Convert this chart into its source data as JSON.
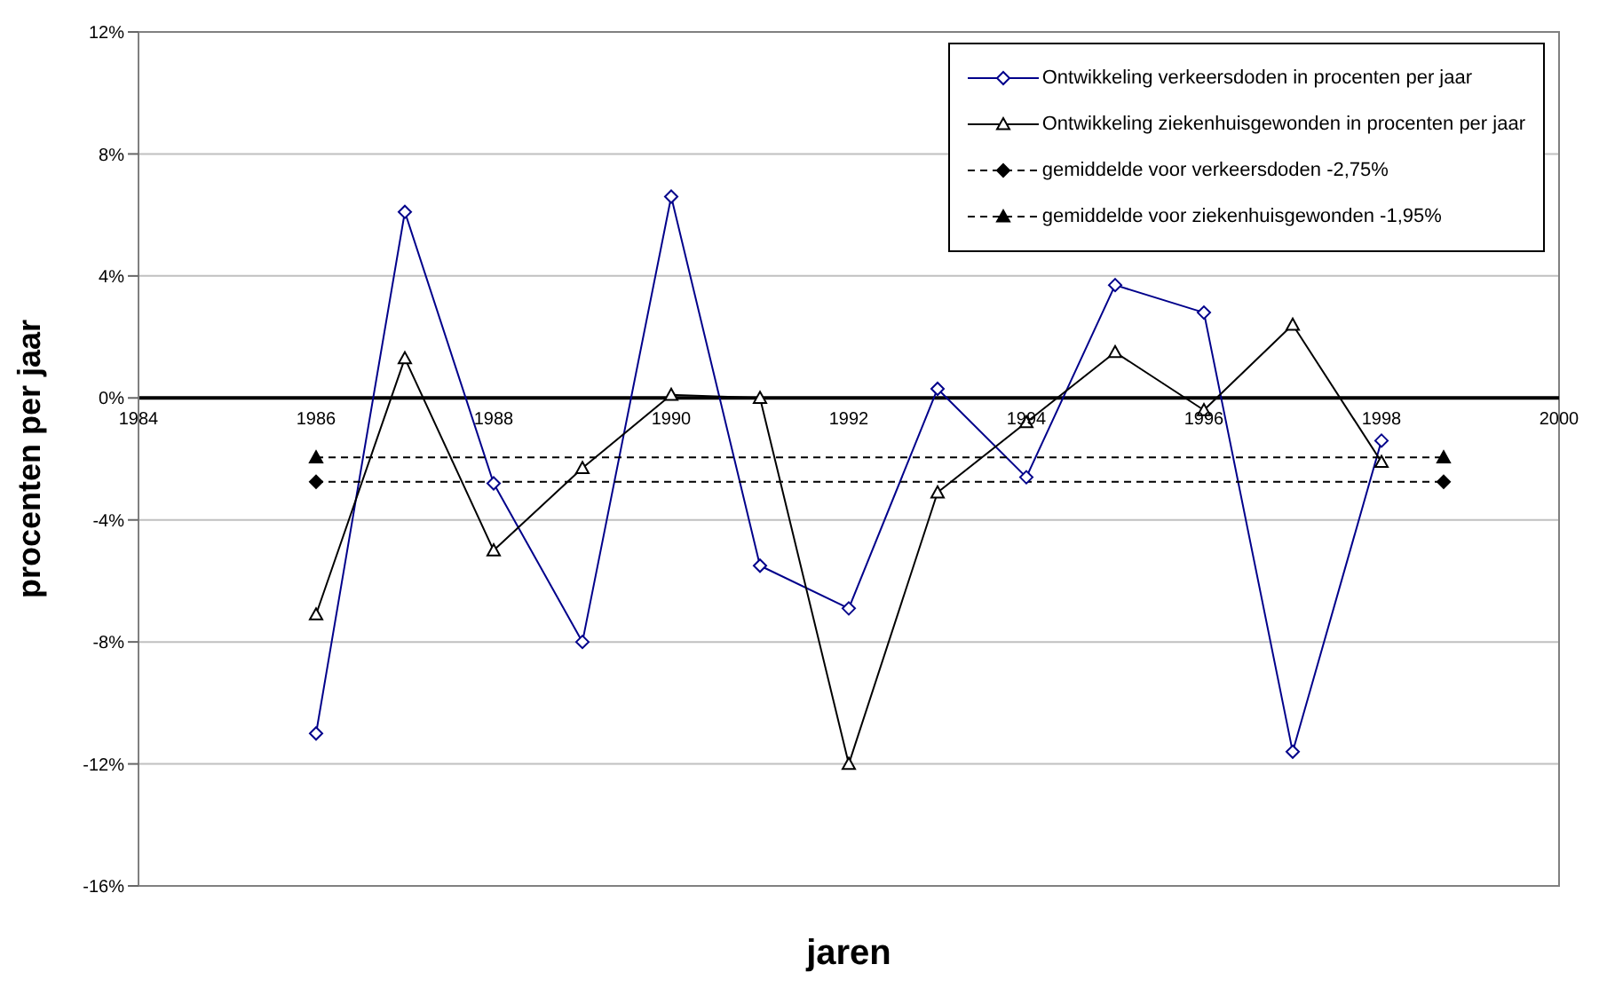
{
  "chart_data": {
    "type": "line",
    "xlabel": "jaren",
    "ylabel": "procenten per jaar",
    "xlim": [
      1984,
      2000
    ],
    "xticks": [
      1984,
      1986,
      1988,
      1990,
      1992,
      1994,
      1996,
      1998,
      2000
    ],
    "ylim": [
      -16,
      12
    ],
    "yticks": [
      {
        "value": -16,
        "label": "-16%"
      },
      {
        "value": -12,
        "label": "-12%"
      },
      {
        "value": -8,
        "label": "-8%"
      },
      {
        "value": -4,
        "label": "-4%"
      },
      {
        "value": 0,
        "label": "0%"
      },
      {
        "value": 4,
        "label": "4%"
      },
      {
        "value": 8,
        "label": "8%"
      },
      {
        "value": 12,
        "label": "12%"
      }
    ],
    "grid": "y",
    "legend": "top right",
    "series": [
      {
        "name": "Ontwikkeling verkeersdoden in procenten per jaar",
        "color": "#00008b",
        "marker": "diamond",
        "line_style": "solid",
        "x": [
          1986,
          1987,
          1988,
          1989,
          1990,
          1991,
          1992,
          1993,
          1994,
          1995,
          1996,
          1997,
          1998
        ],
        "values": [
          -11,
          6.1,
          -2.8,
          -8,
          6.6,
          -5.5,
          -6.9,
          0.3,
          -2.6,
          3.7,
          2.8,
          -11.6,
          -1.4
        ]
      },
      {
        "name": "Ontwikkeling ziekenhuisgewonden in procenten per jaar",
        "color": "#000000",
        "marker": "triangle",
        "line_style": "solid",
        "x": [
          1986,
          1987,
          1988,
          1989,
          1990,
          1991,
          1992,
          1993,
          1994,
          1995,
          1996,
          1997,
          1998
        ],
        "values": [
          -7.1,
          1.3,
          -5,
          -2.3,
          0.1,
          0,
          -12,
          -3.1,
          -0.8,
          1.5,
          -0.4,
          2.4,
          -2.1
        ]
      },
      {
        "name": "gemiddelde voor verkeersdoden -2,75%",
        "color": "#000000",
        "marker": "diamond",
        "line_style": "dashed",
        "x": [
          1986,
          1998.7
        ],
        "values": [
          -2.75,
          -2.75
        ]
      },
      {
        "name": "gemiddelde voor ziekenhuisgewonden -1,95%",
        "color": "#000000",
        "marker": "triangle",
        "line_style": "dashed",
        "x": [
          1986,
          1998.7
        ],
        "values": [
          -1.95,
          -1.95
        ]
      }
    ]
  }
}
